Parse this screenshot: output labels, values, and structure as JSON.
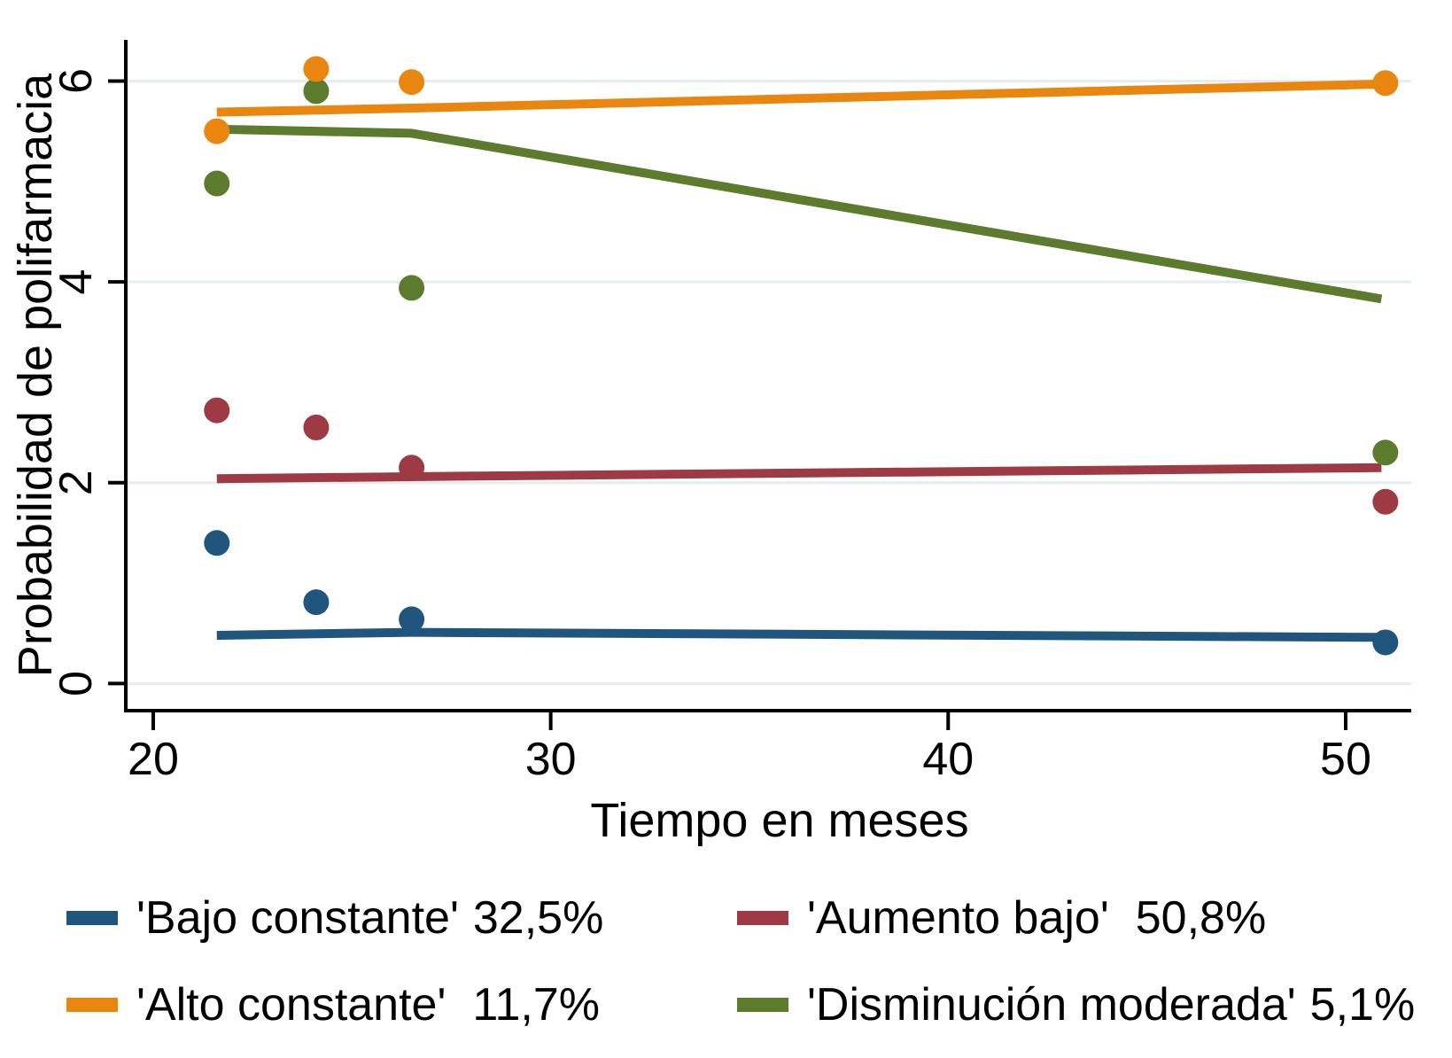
{
  "chart_data": {
    "type": "scatter",
    "title": "",
    "xlabel": "Tiempo en meses",
    "ylabel": "Probabilidad de polifarmacia",
    "xlim": [
      19.31,
      51.65
    ],
    "ylim": [
      -0.27,
      6.41
    ],
    "xticks": [
      20,
      30,
      40,
      50
    ],
    "yticks": [
      0,
      2,
      4,
      6
    ],
    "grid": "horizontal-only",
    "legend_position": "bottom-two-columns",
    "colors": {
      "gridline": "#e4edf1",
      "axis": "#000000",
      "text": "#000000",
      "background": "#ffffff"
    },
    "series": [
      {
        "name": "'Bajo constante'",
        "share": "32,5%",
        "color": "#20557e",
        "markers": [
          [
            21.6,
            1.4
          ],
          [
            24.1,
            0.81
          ],
          [
            26.5,
            0.64
          ],
          [
            51.0,
            0.41
          ]
        ],
        "trend_line": [
          [
            21.6,
            0.48
          ],
          [
            26.5,
            0.51
          ],
          [
            50.9,
            0.46
          ]
        ]
      },
      {
        "name": "'Aumento bajo'",
        "share": "50,8%",
        "color": "#9e3a44",
        "markers": [
          [
            21.6,
            2.72
          ],
          [
            24.1,
            2.55
          ],
          [
            26.5,
            2.15
          ],
          [
            51.0,
            1.81
          ]
        ],
        "trend_line": [
          [
            21.6,
            2.04
          ],
          [
            26.5,
            2.06
          ],
          [
            50.9,
            2.15
          ]
        ]
      },
      {
        "name": "'Alto constante'",
        "share": "11,7%",
        "color": "#e8860f",
        "markers": [
          [
            21.6,
            5.5
          ],
          [
            24.1,
            6.12
          ],
          [
            26.5,
            5.99
          ],
          [
            51.0,
            5.98
          ]
        ],
        "trend_line": [
          [
            21.6,
            5.69
          ],
          [
            26.5,
            5.73
          ],
          [
            50.9,
            5.97
          ]
        ]
      },
      {
        "name": "'Disminución moderada'",
        "share": "5,1%",
        "color": "#5c7b2d",
        "markers": [
          [
            21.6,
            4.98
          ],
          [
            24.1,
            5.9
          ],
          [
            26.5,
            3.94
          ],
          [
            51.0,
            2.3
          ]
        ],
        "trend_line": [
          [
            21.6,
            5.52
          ],
          [
            26.5,
            5.48
          ],
          [
            50.9,
            3.83
          ]
        ]
      }
    ],
    "marker_draw_order": [
      0,
      1,
      3,
      2
    ]
  }
}
